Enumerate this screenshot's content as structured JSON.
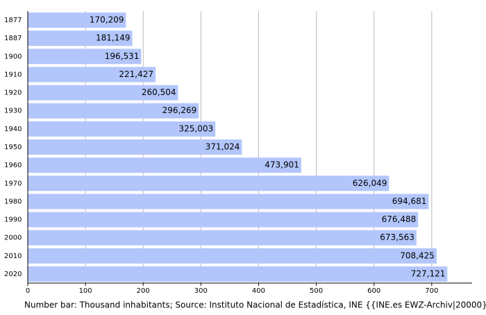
{
  "chart_data": {
    "type": "hbar",
    "caption": "Number bar: Thousand inhabitants; Source: Instituto Nacional de Estadística, INE {{INE.es EWZ-Archiv|20000}}",
    "categories": [
      "1877",
      "1887",
      "1900",
      "1910",
      "1920",
      "1930",
      "1940",
      "1950",
      "1960",
      "1970",
      "1980",
      "1990",
      "2000",
      "2010",
      "2020"
    ],
    "values": [
      170.209,
      181.149,
      196.531,
      221.427,
      260.504,
      296.269,
      325.003,
      371.024,
      473.901,
      626.049,
      694.681,
      676.488,
      673.563,
      708.425,
      727.121
    ],
    "value_labels": [
      "170,209",
      "181,149",
      "196,531",
      "221,427",
      "260,504",
      "296,269",
      "325,003",
      "371,024",
      "473,901",
      "626,049",
      "694,681",
      "676,488",
      "673,563",
      "708,425",
      "727,121"
    ],
    "color": "#b3c6fb",
    "xlim": [
      0,
      770
    ],
    "xticks": [
      0,
      100,
      200,
      300,
      400,
      500,
      600,
      700
    ],
    "grid": true
  }
}
